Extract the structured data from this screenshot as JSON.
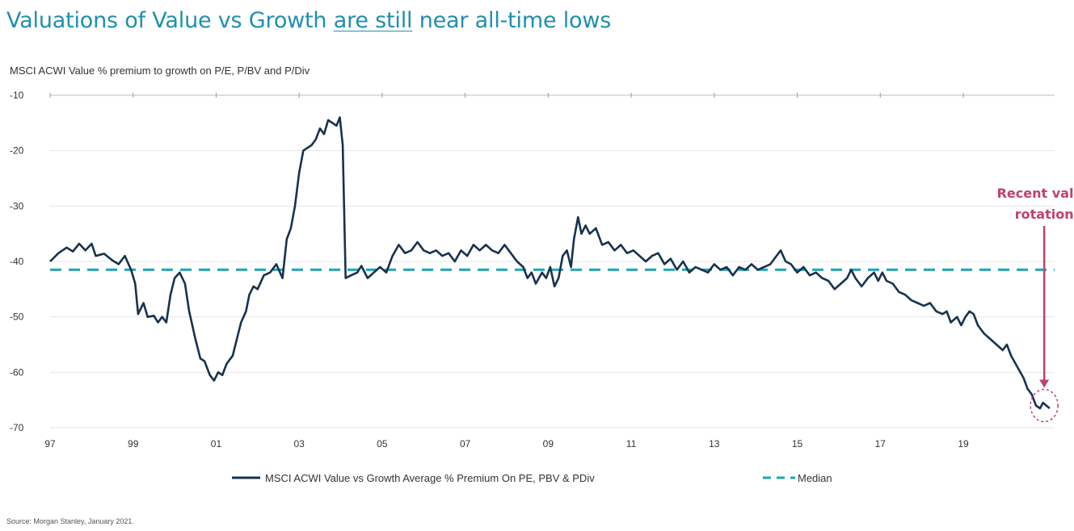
{
  "header": {
    "title_part1": "Valuations of Value vs Growth ",
    "title_part2": "are still",
    "title_part3": " near all-time lows",
    "subtitle": "MSCI ACWI Value % premium to growth on P/E, P/BV and P/Div"
  },
  "source": "Source: Morgan Stanley, January 2021.",
  "colors": {
    "series": "#17324f",
    "median": "#1aa6b4",
    "annotation": "#c0406e",
    "title": "#1f8fb0",
    "grid": "#e4e4e4"
  },
  "chart_data": {
    "type": "line",
    "ylim": [
      -70,
      -10
    ],
    "yticks": [
      -10,
      -20,
      -30,
      -40,
      -50,
      -60,
      -70
    ],
    "xlim": [
      1997.0,
      2021.2
    ],
    "xticks": [
      {
        "value": 1997,
        "label": "97"
      },
      {
        "value": 1999,
        "label": "99"
      },
      {
        "value": 2001,
        "label": "01"
      },
      {
        "value": 2003,
        "label": "03"
      },
      {
        "value": 2005,
        "label": "05"
      },
      {
        "value": 2007,
        "label": "07"
      },
      {
        "value": 2009,
        "label": "09"
      },
      {
        "value": 2011,
        "label": "11"
      },
      {
        "value": 2013,
        "label": "13"
      },
      {
        "value": 2015,
        "label": "15"
      },
      {
        "value": 2017,
        "label": "17"
      },
      {
        "value": 2019,
        "label": "19"
      }
    ],
    "grid": true,
    "legend_position": "bottom",
    "series": [
      {
        "name": "MSCI ACWI Value vs Growth Average % Premium On PE, PBV & PDiv",
        "style": "solid",
        "points": [
          [
            1997.0,
            -40
          ],
          [
            1997.2,
            -38.5
          ],
          [
            1997.4,
            -37.5
          ],
          [
            1997.55,
            -38.2
          ],
          [
            1997.7,
            -36.8
          ],
          [
            1997.85,
            -38
          ],
          [
            1998.0,
            -36.8
          ],
          [
            1998.1,
            -39
          ],
          [
            1998.3,
            -38.6
          ],
          [
            1998.5,
            -39.8
          ],
          [
            1998.65,
            -40.5
          ],
          [
            1998.8,
            -39
          ],
          [
            1998.95,
            -41.5
          ],
          [
            1999.05,
            -44
          ],
          [
            1999.12,
            -49.5
          ],
          [
            1999.25,
            -47.5
          ],
          [
            1999.35,
            -50
          ],
          [
            1999.5,
            -49.8
          ],
          [
            1999.6,
            -51
          ],
          [
            1999.7,
            -50
          ],
          [
            1999.8,
            -51
          ],
          [
            1999.9,
            -46
          ],
          [
            2000.0,
            -43
          ],
          [
            2000.12,
            -42
          ],
          [
            2000.25,
            -44
          ],
          [
            2000.35,
            -49
          ],
          [
            2000.5,
            -54
          ],
          [
            2000.62,
            -57.5
          ],
          [
            2000.72,
            -58
          ],
          [
            2000.85,
            -60.5
          ],
          [
            2000.95,
            -61.5
          ],
          [
            2001.05,
            -60
          ],
          [
            2001.15,
            -60.5
          ],
          [
            2001.25,
            -58.5
          ],
          [
            2001.4,
            -57
          ],
          [
            2001.5,
            -54
          ],
          [
            2001.6,
            -51
          ],
          [
            2001.72,
            -49
          ],
          [
            2001.8,
            -46
          ],
          [
            2001.9,
            -44.5
          ],
          [
            2002.0,
            -45
          ],
          [
            2002.15,
            -42.5
          ],
          [
            2002.3,
            -42
          ],
          [
            2002.45,
            -40.5
          ],
          [
            2002.6,
            -43
          ],
          [
            2002.7,
            -36
          ],
          [
            2002.8,
            -34
          ],
          [
            2002.9,
            -30
          ],
          [
            2003.0,
            -24
          ],
          [
            2003.1,
            -20
          ],
          [
            2003.2,
            -19.5
          ],
          [
            2003.3,
            -19
          ],
          [
            2003.4,
            -18
          ],
          [
            2003.5,
            -16
          ],
          [
            2003.6,
            -17
          ],
          [
            2003.7,
            -14.5
          ],
          [
            2003.8,
            -15
          ],
          [
            2003.9,
            -15.5
          ],
          [
            2003.98,
            -14
          ],
          [
            2004.05,
            -19
          ],
          [
            2004.12,
            -43
          ],
          [
            2004.25,
            -42.5
          ],
          [
            2004.4,
            -42
          ],
          [
            2004.5,
            -40.8
          ],
          [
            2004.65,
            -43
          ],
          [
            2004.8,
            -42
          ],
          [
            2004.95,
            -41
          ],
          [
            2005.1,
            -42
          ],
          [
            2005.25,
            -39
          ],
          [
            2005.4,
            -37
          ],
          [
            2005.55,
            -38.5
          ],
          [
            2005.7,
            -38
          ],
          [
            2005.85,
            -36.5
          ],
          [
            2006.0,
            -38
          ],
          [
            2006.15,
            -38.5
          ],
          [
            2006.3,
            -38
          ],
          [
            2006.45,
            -39
          ],
          [
            2006.6,
            -38.5
          ],
          [
            2006.75,
            -40
          ],
          [
            2006.9,
            -38
          ],
          [
            2007.05,
            -39
          ],
          [
            2007.2,
            -37
          ],
          [
            2007.35,
            -38
          ],
          [
            2007.5,
            -37
          ],
          [
            2007.65,
            -38
          ],
          [
            2007.8,
            -38.5
          ],
          [
            2007.95,
            -37
          ],
          [
            2008.1,
            -38.5
          ],
          [
            2008.25,
            -40
          ],
          [
            2008.4,
            -41
          ],
          [
            2008.5,
            -43
          ],
          [
            2008.6,
            -42
          ],
          [
            2008.7,
            -44
          ],
          [
            2008.85,
            -42
          ],
          [
            2008.95,
            -43
          ],
          [
            2009.05,
            -41
          ],
          [
            2009.15,
            -44.5
          ],
          [
            2009.25,
            -43
          ],
          [
            2009.35,
            -39
          ],
          [
            2009.45,
            -38
          ],
          [
            2009.55,
            -41
          ],
          [
            2009.62,
            -36
          ],
          [
            2009.72,
            -32
          ],
          [
            2009.8,
            -35
          ],
          [
            2009.9,
            -33.5
          ],
          [
            2010.0,
            -35
          ],
          [
            2010.15,
            -34
          ],
          [
            2010.3,
            -37
          ],
          [
            2010.45,
            -36.5
          ],
          [
            2010.6,
            -38
          ],
          [
            2010.75,
            -37
          ],
          [
            2010.9,
            -38.5
          ],
          [
            2011.05,
            -38
          ],
          [
            2011.2,
            -39
          ],
          [
            2011.35,
            -40
          ],
          [
            2011.5,
            -39
          ],
          [
            2011.65,
            -38.5
          ],
          [
            2011.8,
            -40.5
          ],
          [
            2011.95,
            -39.5
          ],
          [
            2012.1,
            -41.5
          ],
          [
            2012.25,
            -40
          ],
          [
            2012.4,
            -42
          ],
          [
            2012.55,
            -41
          ],
          [
            2012.7,
            -41.5
          ],
          [
            2012.85,
            -42
          ],
          [
            2013.0,
            -40.5
          ],
          [
            2013.15,
            -41.5
          ],
          [
            2013.3,
            -41
          ],
          [
            2013.45,
            -42.5
          ],
          [
            2013.6,
            -41
          ],
          [
            2013.75,
            -41.5
          ],
          [
            2013.9,
            -40.5
          ],
          [
            2014.05,
            -41.5
          ],
          [
            2014.2,
            -41
          ],
          [
            2014.35,
            -40.5
          ],
          [
            2014.5,
            -39
          ],
          [
            2014.6,
            -38
          ],
          [
            2014.72,
            -40
          ],
          [
            2014.85,
            -40.5
          ],
          [
            2015.0,
            -42
          ],
          [
            2015.15,
            -41
          ],
          [
            2015.3,
            -42.5
          ],
          [
            2015.45,
            -42
          ],
          [
            2015.6,
            -43
          ],
          [
            2015.75,
            -43.5
          ],
          [
            2015.9,
            -45
          ],
          [
            2016.05,
            -44
          ],
          [
            2016.2,
            -43
          ],
          [
            2016.3,
            -41.5
          ],
          [
            2016.4,
            -43
          ],
          [
            2016.55,
            -44.5
          ],
          [
            2016.7,
            -43
          ],
          [
            2016.85,
            -42
          ],
          [
            2016.95,
            -43.5
          ],
          [
            2017.05,
            -42
          ],
          [
            2017.15,
            -43.5
          ],
          [
            2017.3,
            -44
          ],
          [
            2017.45,
            -45.5
          ],
          [
            2017.6,
            -46
          ],
          [
            2017.75,
            -47
          ],
          [
            2017.9,
            -47.5
          ],
          [
            2018.05,
            -48
          ],
          [
            2018.2,
            -47.5
          ],
          [
            2018.35,
            -49
          ],
          [
            2018.5,
            -49.5
          ],
          [
            2018.6,
            -49
          ],
          [
            2018.7,
            -51
          ],
          [
            2018.85,
            -50
          ],
          [
            2018.95,
            -51.5
          ],
          [
            2019.05,
            -50
          ],
          [
            2019.15,
            -49
          ],
          [
            2019.25,
            -49.5
          ],
          [
            2019.35,
            -51.5
          ],
          [
            2019.5,
            -53
          ],
          [
            2019.65,
            -54
          ],
          [
            2019.8,
            -55
          ],
          [
            2019.95,
            -56
          ],
          [
            2020.05,
            -55
          ],
          [
            2020.15,
            -57
          ],
          [
            2020.3,
            -59
          ],
          [
            2020.45,
            -61
          ],
          [
            2020.55,
            -63
          ],
          [
            2020.65,
            -64
          ],
          [
            2020.75,
            -66
          ],
          [
            2020.85,
            -66.5
          ],
          [
            2020.92,
            -65.5
          ],
          [
            2021.0,
            -66
          ],
          [
            2021.08,
            -66.5
          ]
        ]
      },
      {
        "name": "Median",
        "style": "dashed",
        "value": -41.5
      }
    ],
    "annotations": [
      {
        "text_line1": "Recent value",
        "text_line2": "rotation",
        "x": 2020.95,
        "y": -66
      }
    ]
  }
}
